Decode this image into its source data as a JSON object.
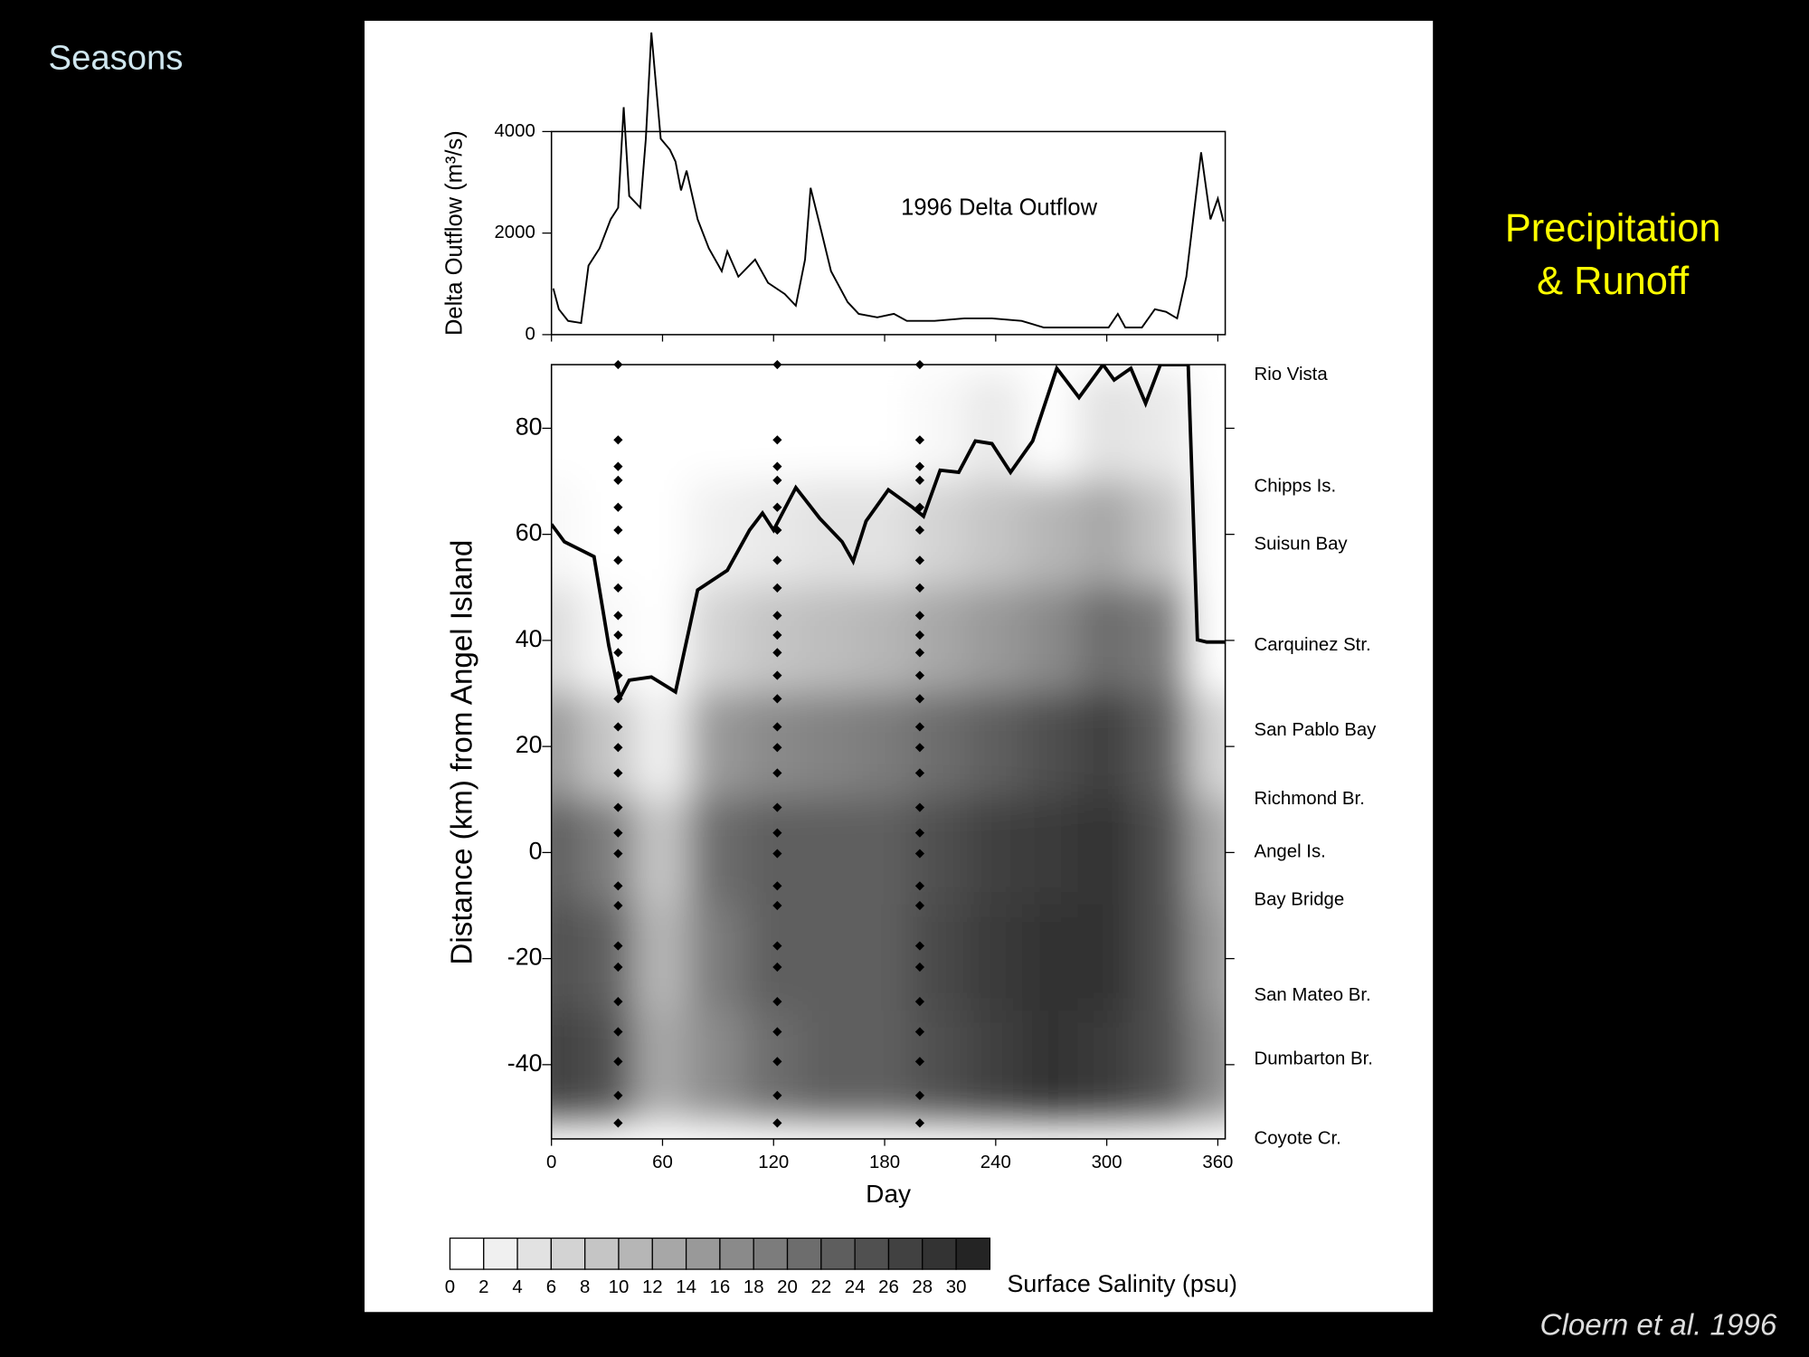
{
  "slide": {
    "title": "Seasons",
    "side_text": [
      "Precipitation",
      "& Runoff"
    ],
    "citation": "Cloern et al. 1996"
  },
  "chart_data": [
    {
      "type": "line",
      "y_label": "Delta Outflow (m³/s)",
      "annotation": "1996 Delta Outflow",
      "color": "#000000",
      "x": [
        1,
        4,
        9,
        16,
        20,
        26,
        32,
        36,
        39,
        42,
        48,
        51,
        54,
        59,
        64,
        67,
        70,
        73,
        79,
        85,
        92,
        95,
        101,
        110,
        117,
        126,
        132,
        137,
        140,
        145,
        151,
        160,
        166,
        176,
        185,
        192,
        207,
        223,
        238,
        254,
        266,
        285,
        301,
        306,
        310,
        319,
        326,
        332,
        338,
        343,
        351,
        356,
        360,
        363
      ],
      "values": [
        910,
        500,
        270,
        230,
        1360,
        1700,
        2270,
        2500,
        4480,
        2730,
        2500,
        3860,
        5950,
        3860,
        3640,
        3410,
        2840,
        3230,
        2270,
        1700,
        1250,
        1640,
        1140,
        1480,
        1020,
        800,
        570,
        1480,
        2890,
        2160,
        1250,
        640,
        410,
        340,
        410,
        270,
        270,
        320,
        320,
        270,
        140,
        140,
        140,
        410,
        140,
        140,
        500,
        450,
        320,
        1140,
        3590,
        2270,
        2680,
        2230
      ],
      "xlim": [
        0,
        364
      ],
      "ylim": [
        0,
        4000
      ],
      "yticks": [
        0,
        2000,
        4000
      ]
    },
    {
      "type": "contour",
      "x_label": "Day",
      "y_label": "Distance (km) from Angel Island",
      "xlim": [
        0,
        364
      ],
      "ylim": [
        -54,
        92
      ],
      "xticks": [
        0,
        60,
        120,
        180,
        240,
        300,
        360
      ],
      "yticks": [
        -40,
        -20,
        0,
        20,
        40,
        60,
        80
      ],
      "stations": {
        "names": [
          "Rio Vista",
          "Chipps Is.",
          "Suisun Bay",
          "Carquinez Str.",
          "San Pablo Bay",
          "Richmond Br.",
          "Angel Is.",
          "Bay Bridge",
          "San Mateo Br.",
          "Dumbarton Br.",
          "Coyote Cr."
        ],
        "km": [
          90,
          69,
          58,
          39,
          23,
          10,
          0,
          -9,
          -27,
          -39,
          -54
        ]
      },
      "grid_days": [
        0,
        30,
        60,
        90,
        120,
        150,
        180,
        210,
        240,
        270,
        300,
        330,
        360
      ],
      "grid_km": [
        80,
        60,
        40,
        20,
        0,
        -20,
        -40
      ],
      "salinity": [
        [
          0,
          0,
          0,
          0,
          0,
          0,
          0,
          1,
          3,
          0,
          4,
          3,
          0
        ],
        [
          1,
          0,
          0,
          2,
          3,
          4,
          4,
          6,
          8,
          10,
          12,
          8,
          0
        ],
        [
          5,
          1,
          0,
          6,
          8,
          9,
          10,
          12,
          14,
          16,
          20,
          18,
          0
        ],
        [
          14,
          8,
          2,
          14,
          16,
          17,
          18,
          20,
          22,
          24,
          26,
          22,
          6
        ],
        [
          22,
          18,
          8,
          20,
          22,
          22,
          22,
          24,
          26,
          27,
          28,
          24,
          12
        ],
        [
          24,
          22,
          10,
          18,
          22,
          22,
          22,
          25,
          27,
          28,
          28,
          24,
          14
        ],
        [
          26,
          24,
          12,
          16,
          20,
          22,
          22,
          24,
          26,
          28,
          27,
          24,
          16
        ]
      ],
      "boundary": {
        "x": [
          0,
          7,
          23,
          31,
          37,
          42,
          54,
          67,
          79,
          95,
          107,
          114,
          120,
          132,
          145,
          157,
          163,
          170,
          182,
          195,
          201,
          210,
          220,
          229,
          238,
          248,
          260,
          273,
          285,
          298,
          304,
          313,
          321,
          329,
          344,
          349,
          354,
          364
        ],
        "values": [
          61.9,
          58.6,
          55.8,
          39,
          29.2,
          32.5,
          33.1,
          30.3,
          49.5,
          53.2,
          60.8,
          64,
          60.8,
          68.8,
          63,
          58.6,
          54.9,
          62.5,
          68.4,
          65.1,
          63.4,
          72.1,
          71.7,
          77.6,
          77.1,
          71.7,
          77.6,
          91.3,
          85.8,
          92,
          89.1,
          91.3,
          84.7,
          92,
          92,
          40.1,
          39.7,
          39.7
        ]
      },
      "sampling_days": [
        36,
        122,
        199
      ],
      "sampling_km": [
        92,
        77.8,
        72.8,
        70.2,
        65.1,
        60.8,
        55.1,
        49.9,
        44.7,
        41,
        37.7,
        33.4,
        29,
        23.7,
        19.8,
        15,
        8.5,
        3.7,
        -0.2,
        -6.3,
        -10,
        -17.6,
        -21.6,
        -28.1,
        -33.8,
        -39.4,
        -45.8,
        -51
      ],
      "colorbar": {
        "ticks": [
          0,
          2,
          4,
          6,
          8,
          10,
          12,
          14,
          16,
          18,
          20,
          22,
          24,
          26,
          28,
          30
        ],
        "label": "Surface Salinity (psu)"
      }
    }
  ]
}
